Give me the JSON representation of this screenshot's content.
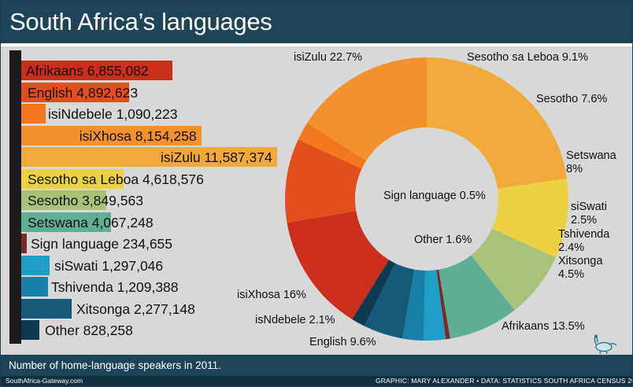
{
  "title": "South Africa’s languages",
  "footnote": "Number of home-language speakers in 2011.",
  "site": "SouthAfrica-Gateway.com",
  "credit": "GRAPHIC: MARY ALEXANDER • DATA: STATISTICS SOUTH AFRICA CENSUS 2011",
  "colors": {
    "header": "#1e4557",
    "afrikaans": "#cc2e1e",
    "english": "#e34f1c",
    "isindebele": "#f2771d",
    "isixhosa": "#f1922d",
    "isizulu": "#f1a93a",
    "sesotho_sa_leboa": "#ecd142",
    "sesotho": "#a9c27a",
    "setswana": "#5fae96",
    "sign_language": "#7a2a2c",
    "siswati": "#1e9fc8",
    "tshivenda": "#1a7fa8",
    "xitsonga": "#155a78",
    "other": "#0d3a4f"
  },
  "chart_data": [
    {
      "type": "bar",
      "orientation": "horizontal",
      "categories": [
        "Afrikaans",
        "English",
        "isiNdebele",
        "isiXhosa",
        "isiZulu",
        "Sesotho sa Leboa",
        "Sesotho",
        "Setswana",
        "Sign language",
        "siSwati",
        "Tshivenda",
        "Xitsonga",
        "Other"
      ],
      "values": [
        6855082,
        4892623,
        1090223,
        8154258,
        11587374,
        4618576,
        3849563,
        4067248,
        234655,
        1297046,
        1209388,
        2277148,
        828258
      ],
      "labels": [
        "Afrikaans 6,855,082",
        "English 4,892,623",
        "isiNdebele 1,090,223",
        "isiXhosa 8,154,258",
        "isiZulu 11,587,374",
        "Sesotho sa Leboa 4,618,576",
        "Sesotho 3,849,563",
        "Setswana 4,067,248",
        "Sign language 234,655",
        "siSwati 1,297,046",
        "Tshivenda 1,209,388",
        "Xitsonga 2,277,148",
        "Other 828,258"
      ],
      "colors": [
        "#cc2e1e",
        "#e34f1c",
        "#f2771d",
        "#f1922d",
        "#f1a93a",
        "#ecd142",
        "#a9c27a",
        "#5fae96",
        "#7a2a2c",
        "#1e9fc8",
        "#1a7fa8",
        "#155a78",
        "#0d3a4f"
      ]
    },
    {
      "type": "pie",
      "style": "donut",
      "categories": [
        "isiZulu",
        "Sesotho sa Leboa",
        "Sesotho",
        "Setswana",
        "Sign language",
        "siSwati",
        "Tshivenda",
        "Xitsonga",
        "Other",
        "Afrikaans",
        "English",
        "isiNdebele",
        "isiXhosa"
      ],
      "values": [
        22.7,
        9.1,
        7.6,
        8,
        0.5,
        2.5,
        2.4,
        4.5,
        1.6,
        13.5,
        9.6,
        2.1,
        16
      ],
      "labels": [
        "isiZulu 22.7%",
        "Sesotho sa Leboa 9.1%",
        "Sesotho 7.6%",
        "Setswana 8%",
        "Sign language 0.5%",
        "siSwati 2.5%",
        "Tshivenda 2.4%",
        "Xitsonga 4.5%",
        "Other 1.6%",
        "Afrikaans 13.5%",
        "English 9.6%",
        "isNdebele 2.1%",
        "isiXhosa 16%"
      ],
      "colors": [
        "#f1a93a",
        "#ecd142",
        "#a9c27a",
        "#5fae96",
        "#7a2a2c",
        "#1e9fc8",
        "#1a7fa8",
        "#155a78",
        "#0d3a4f",
        "#cc2e1e",
        "#e34f1c",
        "#f2771d",
        "#f1922d"
      ]
    }
  ]
}
